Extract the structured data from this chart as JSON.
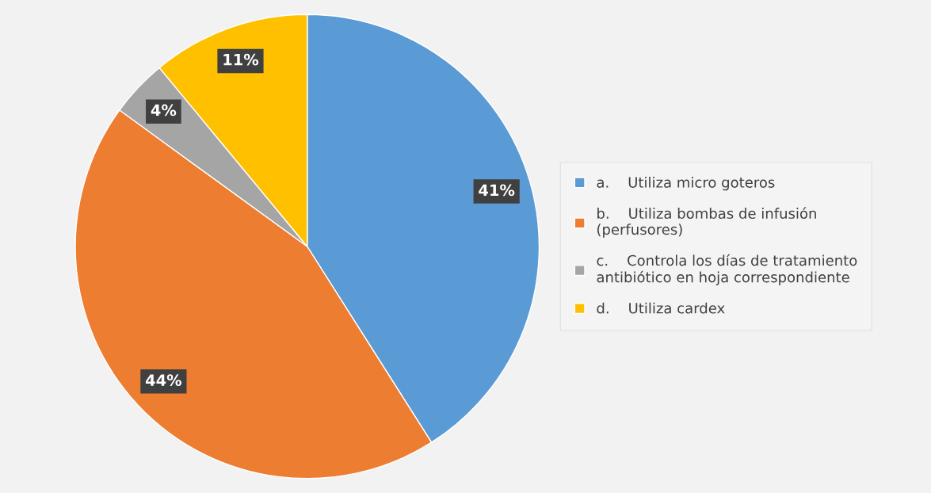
{
  "chart_data": {
    "type": "pie",
    "categories": [
      "a.    Utiliza micro goteros",
      "b.    Utiliza bombas de infusión\n(perfusores)",
      "c.    Controla los días de tratamiento\nantibiótico en hoja correspondiente",
      "d.    Utiliza cardex"
    ],
    "values": [
      41,
      44,
      4,
      11
    ],
    "colors": [
      "#5b9bd5",
      "#ed7d31",
      "#a5a5a5",
      "#ffc000"
    ],
    "value_labels": [
      "41%",
      "44%",
      "4%",
      "11%"
    ],
    "legend": "right"
  }
}
